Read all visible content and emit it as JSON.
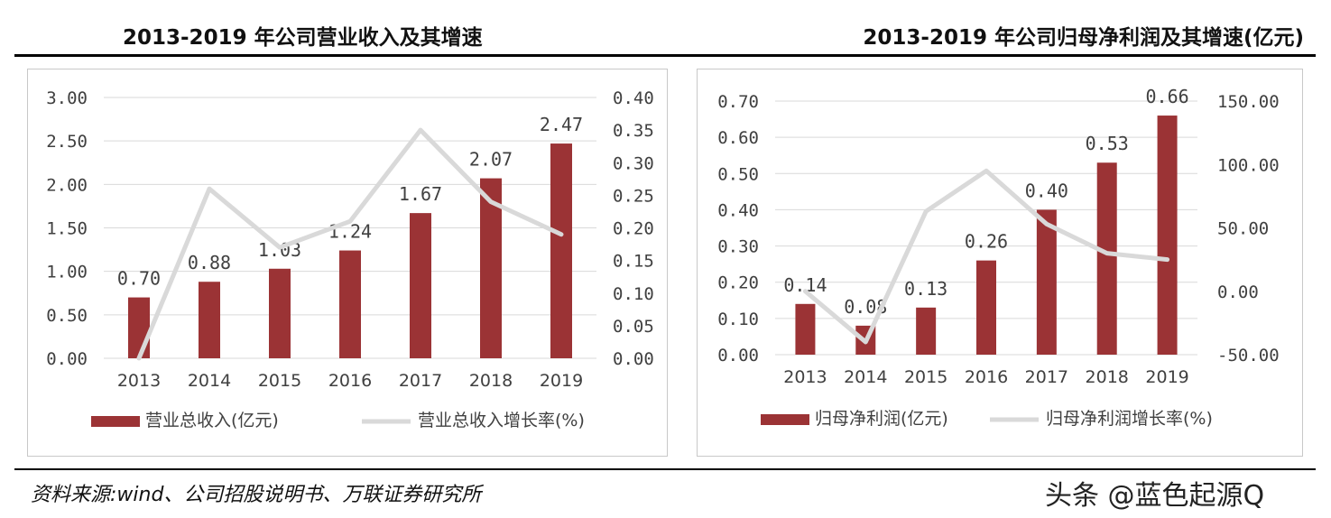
{
  "header": {
    "left_title": "2013-2019 年公司营业收入及其增速",
    "right_title": "2013-2019 年公司归母净利润及其增速(亿元)"
  },
  "footer": {
    "source": "资料来源:wind、公司招股说明书、万联证券研究所",
    "watermark": "头条 @蓝色起源Q"
  },
  "colors": {
    "bar": "#9b3335",
    "line": "#d9d9d9",
    "grid": "#d9d9d9",
    "text": "#404040"
  },
  "chart_data": [
    {
      "type": "bar",
      "categories": [
        "2013",
        "2014",
        "2015",
        "2016",
        "2017",
        "2018",
        "2019"
      ],
      "series": [
        {
          "name": "营业总收入(亿元)",
          "type": "bar",
          "axis": "left",
          "values": [
            0.7,
            0.88,
            1.03,
            1.24,
            1.67,
            2.07,
            2.47
          ],
          "labels": [
            "0.70",
            "0.88",
            "1.03",
            "1.24",
            "1.67",
            "2.07",
            "2.47"
          ]
        },
        {
          "name": "营业总收入增长率(%)",
          "type": "line",
          "axis": "right",
          "values": [
            0.0,
            0.26,
            0.17,
            0.21,
            0.35,
            0.24,
            0.19
          ]
        }
      ],
      "left_axis": {
        "min": 0,
        "max": 3.0,
        "ticks": [
          "0.00",
          "0.50",
          "1.00",
          "1.50",
          "2.00",
          "2.50",
          "3.00"
        ]
      },
      "right_axis": {
        "min": 0,
        "max": 0.4,
        "ticks": [
          "0.00",
          "0.05",
          "0.10",
          "0.15",
          "0.20",
          "0.25",
          "0.30",
          "0.35",
          "0.40"
        ]
      },
      "grid": true,
      "legend": "bottom"
    },
    {
      "type": "bar",
      "categories": [
        "2013",
        "2014",
        "2015",
        "2016",
        "2017",
        "2018",
        "2019"
      ],
      "series": [
        {
          "name": "归母净利润(亿元)",
          "type": "bar",
          "axis": "left",
          "values": [
            0.14,
            0.08,
            0.13,
            0.26,
            0.4,
            0.53,
            0.66
          ],
          "labels": [
            "0.14",
            "0.08",
            "0.13",
            "0.26",
            "0.40",
            "0.53",
            "0.66"
          ]
        },
        {
          "name": "归母净利润增长率(%)",
          "type": "line",
          "axis": "right",
          "values": [
            0,
            -40,
            63,
            95,
            53,
            30,
            25
          ]
        }
      ],
      "left_axis": {
        "min": 0,
        "max": 0.7,
        "ticks": [
          "0.00",
          "0.10",
          "0.20",
          "0.30",
          "0.40",
          "0.50",
          "0.60",
          "0.70"
        ]
      },
      "right_axis": {
        "min": -50,
        "max": 150,
        "ticks": [
          "-50.00",
          "0.00",
          "50.00",
          "100.00",
          "150.00"
        ]
      },
      "grid": true,
      "legend": "bottom"
    }
  ]
}
